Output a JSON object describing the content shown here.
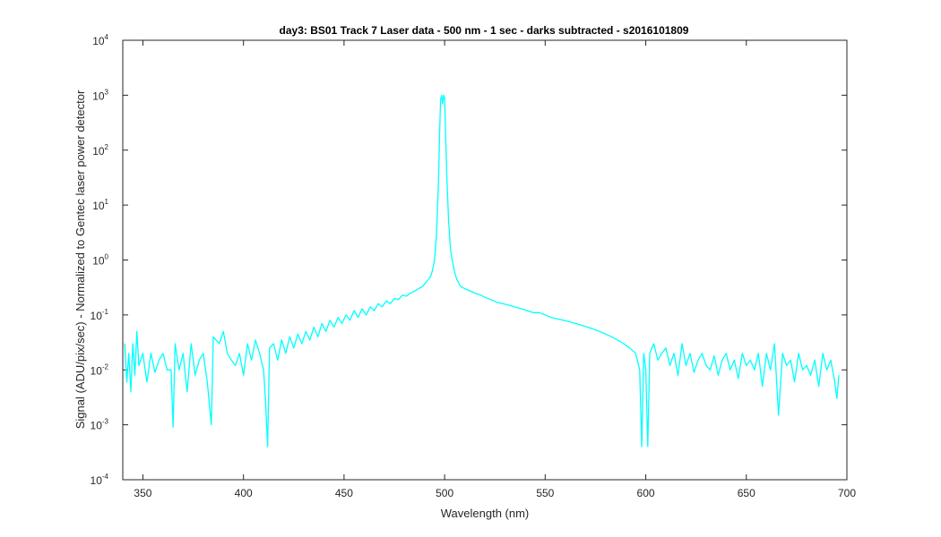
{
  "chart_data": {
    "type": "line",
    "title": "day3: BS01  Track 7 Laser data - 500 nm - 1 sec - darks subtracted - s2016101809",
    "xlabel": "Wavelength (nm)",
    "ylabel": "Signal (ADU/pix/sec) - Normalized to Gentec laser power detector",
    "xlim": [
      340,
      700
    ],
    "ylim": [
      0.0001,
      10000
    ],
    "yscale": "log",
    "grid": false,
    "x_ticks": [
      350,
      400,
      450,
      500,
      550,
      600,
      650,
      700
    ],
    "x_tick_labels": [
      "350",
      "400",
      "450",
      "500",
      "550",
      "600",
      "650",
      "700"
    ],
    "y_ticks": [
      {
        "value": 0.0001,
        "base": "10",
        "exp": "-4"
      },
      {
        "value": 0.001,
        "base": "10",
        "exp": "-3"
      },
      {
        "value": 0.01,
        "base": "10",
        "exp": "-2"
      },
      {
        "value": 0.1,
        "base": "10",
        "exp": "-1"
      },
      {
        "value": 1,
        "base": "10",
        "exp": "0"
      },
      {
        "value": 10,
        "base": "10",
        "exp": "1"
      },
      {
        "value": 100,
        "base": "10",
        "exp": "2"
      },
      {
        "value": 1000,
        "base": "10",
        "exp": "3"
      },
      {
        "value": 10000,
        "base": "10",
        "exp": "4"
      }
    ],
    "series": [
      {
        "color": "#00FFFF",
        "points": [
          [
            341,
            0.03
          ],
          [
            342,
            0.006
          ],
          [
            343,
            0.02
          ],
          [
            344,
            0.004
          ],
          [
            345,
            0.03
          ],
          [
            346,
            0.008
          ],
          [
            347,
            0.05
          ],
          [
            348,
            0.012
          ],
          [
            350,
            0.02
          ],
          [
            352,
            0.006
          ],
          [
            354,
            0.02
          ],
          [
            356,
            0.009
          ],
          [
            358,
            0.015
          ],
          [
            360,
            0.02
          ],
          [
            362,
            0.01
          ],
          [
            364,
            0.01
          ],
          [
            365,
            0.0009
          ],
          [
            366,
            0.03
          ],
          [
            368,
            0.01
          ],
          [
            370,
            0.02
          ],
          [
            372,
            0.004
          ],
          [
            374,
            0.03
          ],
          [
            376,
            0.008
          ],
          [
            378,
            0.015
          ],
          [
            380,
            0.02
          ],
          [
            382,
            0.006
          ],
          [
            384,
            0.001
          ],
          [
            385,
            0.04
          ],
          [
            388,
            0.03
          ],
          [
            390,
            0.05
          ],
          [
            392,
            0.02
          ],
          [
            394,
            0.015
          ],
          [
            396,
            0.012
          ],
          [
            398,
            0.02
          ],
          [
            400,
            0.008
          ],
          [
            402,
            0.03
          ],
          [
            404,
            0.015
          ],
          [
            406,
            0.035
          ],
          [
            408,
            0.02
          ],
          [
            410,
            0.01
          ],
          [
            411,
            0.0025
          ],
          [
            412,
            0.0004
          ],
          [
            413,
            0.025
          ],
          [
            415,
            0.03
          ],
          [
            417,
            0.015
          ],
          [
            419,
            0.035
          ],
          [
            421,
            0.02
          ],
          [
            423,
            0.04
          ],
          [
            425,
            0.025
          ],
          [
            427,
            0.045
          ],
          [
            429,
            0.03
          ],
          [
            431,
            0.05
          ],
          [
            433,
            0.035
          ],
          [
            435,
            0.06
          ],
          [
            437,
            0.04
          ],
          [
            439,
            0.07
          ],
          [
            441,
            0.05
          ],
          [
            443,
            0.08
          ],
          [
            445,
            0.06
          ],
          [
            447,
            0.09
          ],
          [
            449,
            0.07
          ],
          [
            451,
            0.1
          ],
          [
            453,
            0.08
          ],
          [
            455,
            0.12
          ],
          [
            457,
            0.09
          ],
          [
            459,
            0.13
          ],
          [
            461,
            0.1
          ],
          [
            463,
            0.14
          ],
          [
            465,
            0.12
          ],
          [
            467,
            0.16
          ],
          [
            469,
            0.14
          ],
          [
            471,
            0.18
          ],
          [
            473,
            0.16
          ],
          [
            475,
            0.2
          ],
          [
            477,
            0.19
          ],
          [
            479,
            0.23
          ],
          [
            481,
            0.22
          ],
          [
            483,
            0.25
          ],
          [
            485,
            0.27
          ],
          [
            487,
            0.3
          ],
          [
            489,
            0.33
          ],
          [
            491,
            0.4
          ],
          [
            493,
            0.5
          ],
          [
            494,
            0.65
          ],
          [
            495,
            1.0
          ],
          [
            496,
            3.0
          ],
          [
            497,
            30
          ],
          [
            497.5,
            200
          ],
          [
            498,
            800
          ],
          [
            498.5,
            1000
          ],
          [
            499,
            700
          ],
          [
            499.5,
            1000
          ],
          [
            500,
            900
          ],
          [
            500.5,
            200
          ],
          [
            501,
            40
          ],
          [
            502,
            5
          ],
          [
            503,
            1.5
          ],
          [
            504,
            0.9
          ],
          [
            505,
            0.6
          ],
          [
            506,
            0.45
          ],
          [
            507,
            0.38
          ],
          [
            508,
            0.33
          ],
          [
            510,
            0.3
          ],
          [
            512,
            0.28
          ],
          [
            515,
            0.25
          ],
          [
            518,
            0.23
          ],
          [
            520,
            0.21
          ],
          [
            523,
            0.19
          ],
          [
            526,
            0.17
          ],
          [
            529,
            0.16
          ],
          [
            532,
            0.15
          ],
          [
            535,
            0.14
          ],
          [
            538,
            0.13
          ],
          [
            541,
            0.12
          ],
          [
            544,
            0.11
          ],
          [
            547,
            0.11
          ],
          [
            550,
            0.1
          ],
          [
            553,
            0.09
          ],
          [
            556,
            0.085
          ],
          [
            559,
            0.08
          ],
          [
            562,
            0.075
          ],
          [
            565,
            0.07
          ],
          [
            568,
            0.065
          ],
          [
            571,
            0.06
          ],
          [
            574,
            0.055
          ],
          [
            577,
            0.05
          ],
          [
            580,
            0.045
          ],
          [
            583,
            0.04
          ],
          [
            586,
            0.035
          ],
          [
            589,
            0.03
          ],
          [
            592,
            0.025
          ],
          [
            595,
            0.02
          ],
          [
            597,
            0.01
          ],
          [
            598,
            0.0004
          ],
          [
            599,
            0.02
          ],
          [
            600,
            0.01
          ],
          [
            601,
            0.0004
          ],
          [
            602,
            0.02
          ],
          [
            604,
            0.03
          ],
          [
            606,
            0.015
          ],
          [
            608,
            0.02
          ],
          [
            610,
            0.025
          ],
          [
            612,
            0.012
          ],
          [
            614,
            0.02
          ],
          [
            616,
            0.008
          ],
          [
            618,
            0.03
          ],
          [
            620,
            0.012
          ],
          [
            622,
            0.02
          ],
          [
            624,
            0.009
          ],
          [
            626,
            0.015
          ],
          [
            628,
            0.02
          ],
          [
            630,
            0.012
          ],
          [
            632,
            0.01
          ],
          [
            634,
            0.018
          ],
          [
            636,
            0.008
          ],
          [
            638,
            0.015
          ],
          [
            640,
            0.02
          ],
          [
            642,
            0.01
          ],
          [
            644,
            0.015
          ],
          [
            646,
            0.007
          ],
          [
            648,
            0.02
          ],
          [
            650,
            0.012
          ],
          [
            652,
            0.015
          ],
          [
            654,
            0.01
          ],
          [
            656,
            0.02
          ],
          [
            658,
            0.005
          ],
          [
            660,
            0.02
          ],
          [
            662,
            0.01
          ],
          [
            664,
            0.03
          ],
          [
            666,
            0.0015
          ],
          [
            668,
            0.02
          ],
          [
            670,
            0.012
          ],
          [
            672,
            0.015
          ],
          [
            674,
            0.006
          ],
          [
            676,
            0.02
          ],
          [
            678,
            0.01
          ],
          [
            680,
            0.012
          ],
          [
            682,
            0.008
          ],
          [
            684,
            0.015
          ],
          [
            686,
            0.005
          ],
          [
            688,
            0.02
          ],
          [
            690,
            0.01
          ],
          [
            692,
            0.015
          ],
          [
            694,
            0.006
          ],
          [
            695,
            0.003
          ],
          [
            696,
            0.008
          ]
        ]
      }
    ]
  }
}
